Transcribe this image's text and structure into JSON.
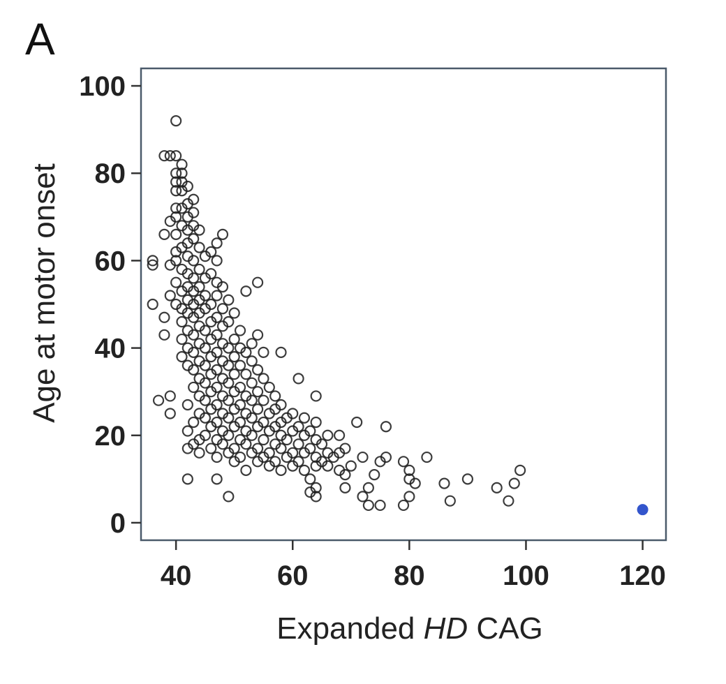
{
  "panel_label": "A",
  "chart_data": {
    "type": "scatter",
    "xlabel_parts": [
      "Expanded ",
      "HD",
      " CAG"
    ],
    "ylabel": "Age at motor onset",
    "xlim": [
      34,
      124
    ],
    "ylim": [
      -4,
      104
    ],
    "xticks": [
      40,
      60,
      80,
      100,
      120
    ],
    "yticks": [
      0,
      20,
      40,
      60,
      80,
      100
    ],
    "grid": false,
    "marker": "open-circle",
    "series": [
      {
        "points": [
          [
            40,
            92
          ],
          [
            38,
            84
          ],
          [
            39,
            84
          ],
          [
            40,
            84
          ],
          [
            41,
            82
          ],
          [
            40,
            80
          ],
          [
            41,
            80
          ],
          [
            40,
            78
          ],
          [
            41,
            78
          ],
          [
            42,
            77
          ],
          [
            41,
            76
          ],
          [
            40,
            76
          ],
          [
            43,
            74
          ],
          [
            42,
            73
          ],
          [
            40,
            72
          ],
          [
            41,
            72
          ],
          [
            43,
            71
          ],
          [
            42,
            70
          ],
          [
            40,
            70
          ],
          [
            39,
            69
          ],
          [
            41,
            68
          ],
          [
            43,
            68
          ],
          [
            42,
            67
          ],
          [
            44,
            67
          ],
          [
            40,
            66
          ],
          [
            38,
            66
          ],
          [
            43,
            65
          ],
          [
            48,
            66
          ],
          [
            47,
            64
          ],
          [
            42,
            64
          ],
          [
            41,
            63
          ],
          [
            44,
            63
          ],
          [
            40,
            62
          ],
          [
            46,
            62
          ],
          [
            42,
            61
          ],
          [
            45,
            61
          ],
          [
            43,
            60
          ],
          [
            47,
            60
          ],
          [
            36,
            60
          ],
          [
            40,
            60
          ],
          [
            36,
            59
          ],
          [
            39,
            59
          ],
          [
            41,
            58
          ],
          [
            44,
            58
          ],
          [
            42,
            57
          ],
          [
            46,
            57
          ],
          [
            43,
            56
          ],
          [
            45,
            56
          ],
          [
            40,
            55
          ],
          [
            47,
            55
          ],
          [
            54,
            55
          ],
          [
            42,
            54
          ],
          [
            44,
            54
          ],
          [
            48,
            54
          ],
          [
            41,
            53
          ],
          [
            43,
            53
          ],
          [
            52,
            53
          ],
          [
            45,
            52
          ],
          [
            39,
            52
          ],
          [
            47,
            52
          ],
          [
            42,
            51
          ],
          [
            44,
            51
          ],
          [
            49,
            51
          ],
          [
            43,
            50
          ],
          [
            46,
            50
          ],
          [
            36,
            50
          ],
          [
            40,
            50
          ],
          [
            41,
            49
          ],
          [
            45,
            49
          ],
          [
            48,
            49
          ],
          [
            42,
            48
          ],
          [
            44,
            48
          ],
          [
            50,
            48
          ],
          [
            38,
            47
          ],
          [
            43,
            47
          ],
          [
            47,
            47
          ],
          [
            41,
            46
          ],
          [
            46,
            46
          ],
          [
            49,
            46
          ],
          [
            44,
            45
          ],
          [
            48,
            45
          ],
          [
            42,
            44
          ],
          [
            45,
            44
          ],
          [
            51,
            44
          ],
          [
            38,
            43
          ],
          [
            43,
            43
          ],
          [
            47,
            43
          ],
          [
            54,
            43
          ],
          [
            41,
            42
          ],
          [
            46,
            42
          ],
          [
            50,
            42
          ],
          [
            44,
            41
          ],
          [
            48,
            41
          ],
          [
            53,
            41
          ],
          [
            42,
            40
          ],
          [
            45,
            40
          ],
          [
            49,
            40
          ],
          [
            51,
            40
          ],
          [
            43,
            39
          ],
          [
            47,
            39
          ],
          [
            52,
            39
          ],
          [
            58,
            39
          ],
          [
            55,
            39
          ],
          [
            41,
            38
          ],
          [
            46,
            38
          ],
          [
            50,
            38
          ],
          [
            44,
            37
          ],
          [
            48,
            37
          ],
          [
            53,
            37
          ],
          [
            42,
            36
          ],
          [
            45,
            36
          ],
          [
            49,
            36
          ],
          [
            51,
            36
          ],
          [
            43,
            35
          ],
          [
            47,
            35
          ],
          [
            54,
            35
          ],
          [
            46,
            34
          ],
          [
            50,
            34
          ],
          [
            52,
            34
          ],
          [
            44,
            33
          ],
          [
            48,
            33
          ],
          [
            55,
            33
          ],
          [
            61,
            33
          ],
          [
            45,
            32
          ],
          [
            49,
            32
          ],
          [
            53,
            32
          ],
          [
            43,
            31
          ],
          [
            47,
            31
          ],
          [
            51,
            31
          ],
          [
            56,
            31
          ],
          [
            46,
            30
          ],
          [
            50,
            30
          ],
          [
            54,
            30
          ],
          [
            44,
            29
          ],
          [
            48,
            29
          ],
          [
            52,
            29
          ],
          [
            57,
            29
          ],
          [
            39,
            29
          ],
          [
            64,
            29
          ],
          [
            45,
            28
          ],
          [
            49,
            28
          ],
          [
            53,
            28
          ],
          [
            55,
            28
          ],
          [
            37,
            28
          ],
          [
            42,
            27
          ],
          [
            47,
            27
          ],
          [
            51,
            27
          ],
          [
            58,
            27
          ],
          [
            46,
            26
          ],
          [
            50,
            26
          ],
          [
            54,
            26
          ],
          [
            57,
            26
          ],
          [
            44,
            25
          ],
          [
            48,
            25
          ],
          [
            52,
            25
          ],
          [
            56,
            25
          ],
          [
            60,
            25
          ],
          [
            39,
            25
          ],
          [
            45,
            24
          ],
          [
            49,
            24
          ],
          [
            53,
            24
          ],
          [
            59,
            24
          ],
          [
            62,
            24
          ],
          [
            43,
            23
          ],
          [
            47,
            23
          ],
          [
            51,
            23
          ],
          [
            55,
            23
          ],
          [
            58,
            23
          ],
          [
            64,
            23
          ],
          [
            71,
            23
          ],
          [
            46,
            22
          ],
          [
            50,
            22
          ],
          [
            54,
            22
          ],
          [
            57,
            22
          ],
          [
            61,
            22
          ],
          [
            76,
            22
          ],
          [
            42,
            21
          ],
          [
            48,
            21
          ],
          [
            52,
            21
          ],
          [
            56,
            21
          ],
          [
            60,
            21
          ],
          [
            63,
            21
          ],
          [
            45,
            20
          ],
          [
            49,
            20
          ],
          [
            53,
            20
          ],
          [
            58,
            20
          ],
          [
            62,
            20
          ],
          [
            66,
            20
          ],
          [
            68,
            20
          ],
          [
            44,
            19
          ],
          [
            47,
            19
          ],
          [
            51,
            19
          ],
          [
            55,
            19
          ],
          [
            59,
            19
          ],
          [
            64,
            19
          ],
          [
            43,
            18
          ],
          [
            48,
            18
          ],
          [
            52,
            18
          ],
          [
            57,
            18
          ],
          [
            61,
            18
          ],
          [
            65,
            18
          ],
          [
            42,
            17
          ],
          [
            46,
            17
          ],
          [
            50,
            17
          ],
          [
            54,
            17
          ],
          [
            58,
            17
          ],
          [
            63,
            17
          ],
          [
            69,
            17
          ],
          [
            44,
            16
          ],
          [
            49,
            16
          ],
          [
            53,
            16
          ],
          [
            56,
            16
          ],
          [
            60,
            16
          ],
          [
            62,
            16
          ],
          [
            66,
            16
          ],
          [
            68,
            16
          ],
          [
            47,
            15
          ],
          [
            51,
            15
          ],
          [
            55,
            15
          ],
          [
            59,
            15
          ],
          [
            64,
            15
          ],
          [
            67,
            15
          ],
          [
            72,
            15
          ],
          [
            76,
            15
          ],
          [
            83,
            15
          ],
          [
            50,
            14
          ],
          [
            54,
            14
          ],
          [
            57,
            14
          ],
          [
            61,
            14
          ],
          [
            65,
            14
          ],
          [
            75,
            14
          ],
          [
            79,
            14
          ],
          [
            56,
            13
          ],
          [
            60,
            13
          ],
          [
            64,
            13
          ],
          [
            66,
            13
          ],
          [
            70,
            13
          ],
          [
            52,
            12
          ],
          [
            58,
            12
          ],
          [
            62,
            12
          ],
          [
            68,
            12
          ],
          [
            80,
            12
          ],
          [
            99,
            12
          ],
          [
            69,
            11
          ],
          [
            74,
            11
          ],
          [
            42,
            10
          ],
          [
            47,
            10
          ],
          [
            63,
            10
          ],
          [
            80,
            10
          ],
          [
            90,
            10
          ],
          [
            81,
            9
          ],
          [
            86,
            9
          ],
          [
            98,
            9
          ],
          [
            64,
            8
          ],
          [
            69,
            8
          ],
          [
            73,
            8
          ],
          [
            95,
            8
          ],
          [
            63,
            7
          ],
          [
            49,
            6
          ],
          [
            64,
            6
          ],
          [
            72,
            6
          ],
          [
            80,
            6
          ],
          [
            87,
            5
          ],
          [
            97,
            5
          ],
          [
            73,
            4
          ],
          [
            75,
            4
          ],
          [
            79,
            4
          ]
        ]
      },
      {
        "highlight": true,
        "color": "#3355cc",
        "points": [
          [
            120,
            3
          ]
        ]
      }
    ]
  }
}
